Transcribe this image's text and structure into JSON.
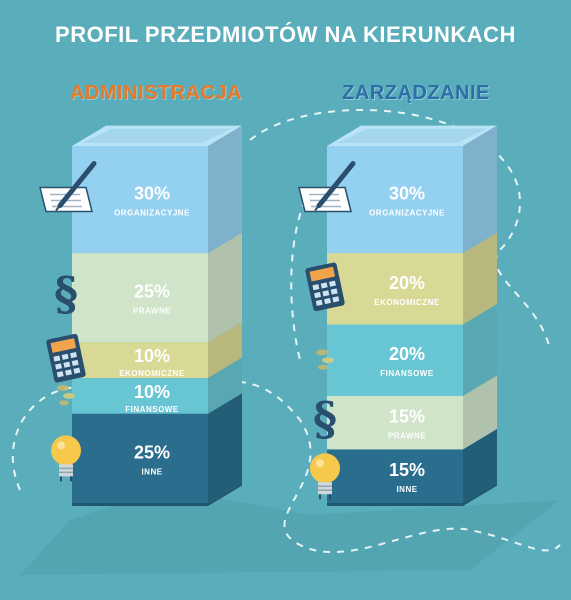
{
  "title": "PROFIL PRZEDMIOTÓW NA KIERUNKACH",
  "colors": {
    "background": "#5aaebb",
    "accent_left": "#e5792a",
    "accent_right": "#2c6fa8",
    "organizacyjne": "#94d0f0",
    "prawne": "#cfe4c9",
    "ekonomiczne": "#d8d994",
    "finansowe": "#68c5d3",
    "inne": "#2a6d8d"
  },
  "chart_data": [
    {
      "type": "bar",
      "title": "ADMINISTRACJA",
      "stacked": true,
      "categories": [
        "ORGANIZACYJNE",
        "PRAWNE",
        "EKONOMICZNE",
        "FINANSOWE",
        "INNE"
      ],
      "values": [
        30,
        25,
        10,
        10,
        25
      ],
      "labels": [
        "30%",
        "25%",
        "10%",
        "10%",
        "25%"
      ],
      "icons": [
        "document-pen-icon",
        "paragraph-icon",
        "calculator-icon",
        "coins-icon",
        "lightbulb-icon"
      ]
    },
    {
      "type": "bar",
      "title": "ZARZĄDZANIE",
      "stacked": true,
      "categories": [
        "ORGANIZACYJNE",
        "EKONOMICZNE",
        "FINANSOWE",
        "PRAWNE",
        "INNE"
      ],
      "values": [
        30,
        20,
        20,
        15,
        15
      ],
      "labels": [
        "30%",
        "20%",
        "20%",
        "15%",
        "15%"
      ],
      "icons": [
        "document-pen-icon",
        "calculator-icon",
        "coins-icon",
        "paragraph-icon",
        "lightbulb-icon"
      ]
    }
  ]
}
